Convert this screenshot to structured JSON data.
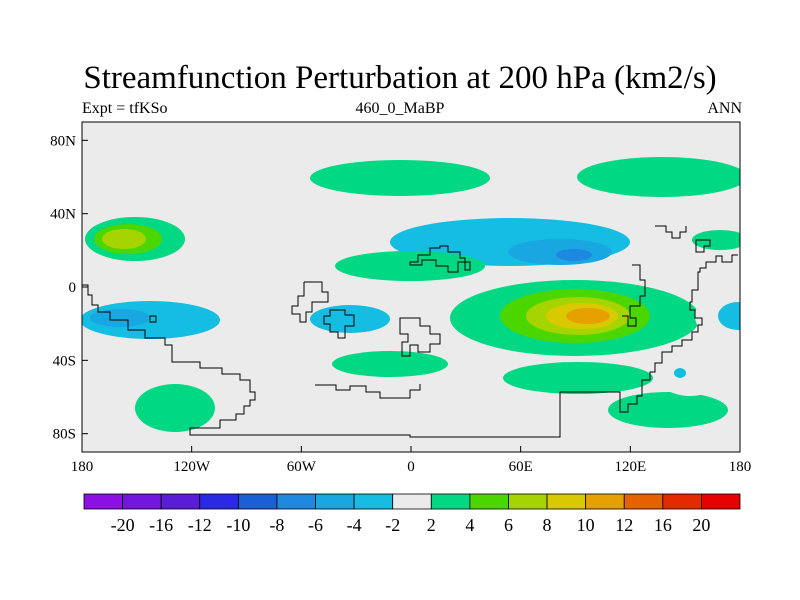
{
  "title": "Streamfunction Perturbation at 200 hPa (km2/s)",
  "subtitle_left": "Expt = tfKSo",
  "subtitle_center": "460_0_MaBP",
  "subtitle_right": "ANN",
  "axes": {
    "x_ticks": [
      "180",
      "120W",
      "60W",
      "0",
      "60E",
      "120E",
      "180"
    ],
    "y_ticks": [
      "80N",
      "40N",
      "0",
      "40S",
      "80S"
    ],
    "lon_range": [
      -180,
      180
    ],
    "lat_range": [
      -90,
      90
    ]
  },
  "colorbar": {
    "labels": [
      "-20",
      "-16",
      "-12",
      "-10",
      "-8",
      "-6",
      "-4",
      "-2",
      "2",
      "4",
      "6",
      "8",
      "10",
      "12",
      "16",
      "20"
    ],
    "colors": [
      "#8c0fe6",
      "#7216e0",
      "#5a1cd9",
      "#2a2ae6",
      "#1a5fd6",
      "#1e87df",
      "#18a7e0",
      "#16bde3",
      "#ebebeb",
      "#00d884",
      "#4cd600",
      "#a6d400",
      "#d9c900",
      "#e6a000",
      "#e66200",
      "#e62a00",
      "#e60000"
    ]
  },
  "colors": {
    "background": "#ebebeb",
    "coast": "#000000"
  }
}
